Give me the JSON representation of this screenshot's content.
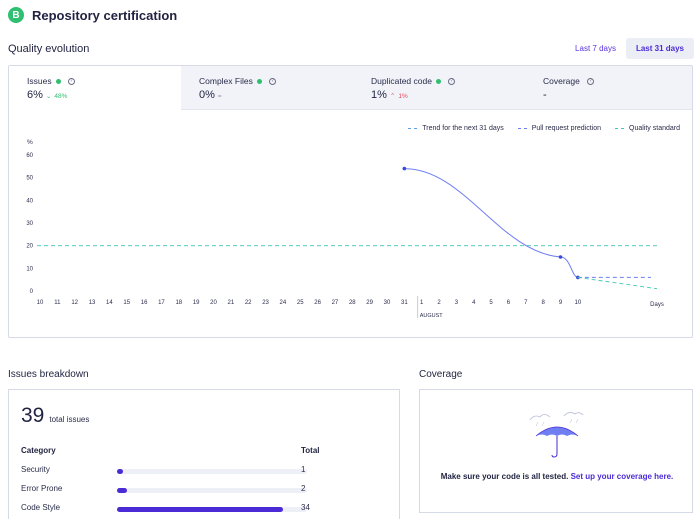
{
  "header": {
    "grade": "B",
    "title": "Repository certification"
  },
  "quality_evolution": {
    "title": "Quality evolution",
    "ranges": [
      {
        "label": "Last 7 days",
        "active": false
      },
      {
        "label": "Last 31 days",
        "active": true
      }
    ],
    "metrics": [
      {
        "name": "Issues",
        "status": "green",
        "value": "6%",
        "delta": "48%",
        "delta_kind": "good",
        "selected": true
      },
      {
        "name": "Complex Files",
        "status": "green",
        "value": "0%",
        "delta": "=",
        "delta_kind": "neutral",
        "selected": false
      },
      {
        "name": "Duplicated code",
        "status": "green",
        "value": "1%",
        "delta": "1%",
        "delta_kind": "bad",
        "selected": false
      },
      {
        "name": "Coverage",
        "status": "none",
        "value": "-",
        "delta": "",
        "delta_kind": "neutral",
        "selected": false
      }
    ],
    "legend": [
      "Trend for the next 31 days",
      "Pull request prediction",
      "Quality standard"
    ]
  },
  "chart_data": {
    "type": "line",
    "ylabel": "%",
    "xlabel": "Days",
    "ylim": [
      0,
      60
    ],
    "yticks": [
      0,
      10,
      20,
      30,
      40,
      50,
      60
    ],
    "x_ticks": [
      "10",
      "11",
      "12",
      "13",
      "14",
      "15",
      "16",
      "17",
      "18",
      "19",
      "20",
      "21",
      "22",
      "23",
      "24",
      "25",
      "26",
      "27",
      "28",
      "29",
      "30",
      "31",
      "1",
      "2",
      "3",
      "4",
      "5",
      "6",
      "7",
      "8",
      "9",
      "10"
    ],
    "month_marker": {
      "label": "AUGUST",
      "at": "1"
    },
    "series": [
      {
        "name": "Issues",
        "points": [
          [
            "31",
            54
          ],
          [
            "9",
            15
          ],
          [
            "10",
            6
          ]
        ]
      },
      {
        "name": "Pull request prediction",
        "points": [
          [
            "10",
            6
          ],
          [
            "Days",
            6
          ]
        ]
      },
      {
        "name": "Trend for the next 31 days",
        "points": [
          [
            "10",
            6
          ],
          [
            "Days",
            1
          ]
        ]
      },
      {
        "name": "Quality standard",
        "points": [
          [
            "10",
            20
          ],
          [
            "Days",
            20
          ]
        ]
      }
    ],
    "colors": {
      "issues": "#6f7ff2",
      "pr": "#6f7ff2",
      "trend": "#3fc7b3",
      "standard": "#3fc7b3"
    }
  },
  "issues_breakdown": {
    "title": "Issues breakdown",
    "total": "39",
    "total_label": "total issues",
    "col_category": "Category",
    "col_total": "Total",
    "rows": [
      {
        "category": "Security",
        "total": "1",
        "fraction": 0.026
      },
      {
        "category": "Error Prone",
        "total": "2",
        "fraction": 0.051
      },
      {
        "category": "Code Style",
        "total": "34",
        "fraction": 0.872
      }
    ]
  },
  "coverage": {
    "title": "Coverage",
    "message": "Make sure your code is all tested.",
    "link": "Set up your coverage here."
  }
}
